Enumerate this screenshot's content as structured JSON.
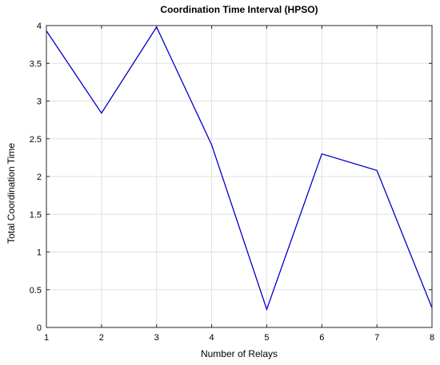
{
  "chart_data": {
    "type": "line",
    "title": "Coordination Time Interval (HPSO)",
    "xlabel": "Number of Relays",
    "ylabel": "Total Coordination Time",
    "xlim": [
      1,
      8
    ],
    "ylim": [
      0,
      4
    ],
    "xticks": [
      1,
      2,
      3,
      4,
      5,
      6,
      7,
      8
    ],
    "yticks": [
      0,
      0.5,
      1,
      1.5,
      2,
      2.5,
      3,
      3.5,
      4
    ],
    "grid": true,
    "series": [
      {
        "color": "#0000cd",
        "x": [
          1,
          2,
          3,
          4,
          5,
          6,
          7,
          8
        ],
        "y": [
          3.93,
          2.84,
          3.98,
          2.42,
          0.24,
          2.3,
          2.08,
          0.26
        ]
      }
    ]
  }
}
